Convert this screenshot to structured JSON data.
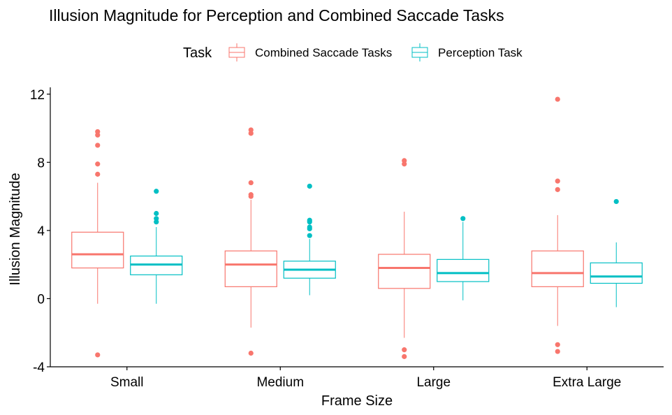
{
  "chart_data": {
    "type": "box",
    "title": "Illusion Magnitude for Perception and Combined Saccade Tasks",
    "xlabel": "Frame Size",
    "ylabel": "Illusion Magnitude",
    "ylim": [
      -4,
      12.4
    ],
    "yticks": [
      -4,
      0,
      4,
      8,
      12
    ],
    "yticklabels": [
      "-4",
      "0",
      "4",
      "8",
      "12"
    ],
    "grid": false,
    "legend": {
      "title": "Task",
      "position": "top"
    },
    "categories": [
      "Small",
      "Medium",
      "Large",
      "Extra Large"
    ],
    "series": [
      {
        "name": "Combined Saccade Tasks",
        "color": "#F8766D",
        "boxes": [
          {
            "category": "Small",
            "whisker_low": -0.3,
            "q1": 1.8,
            "median": 2.6,
            "q3": 3.9,
            "whisker_high": 6.8,
            "outliers": [
              -3.3,
              7.3,
              7.9,
              9.0,
              9.6,
              9.8
            ]
          },
          {
            "category": "Medium",
            "whisker_low": -1.7,
            "q1": 0.7,
            "median": 2.0,
            "q3": 2.8,
            "whisker_high": 5.8,
            "outliers": [
              -3.2,
              6.0,
              6.1,
              6.8,
              9.7,
              9.9
            ]
          },
          {
            "category": "Large",
            "whisker_low": -2.3,
            "q1": 0.6,
            "median": 1.8,
            "q3": 2.6,
            "whisker_high": 5.1,
            "outliers": [
              -3.0,
              -3.4,
              7.9,
              8.1
            ]
          },
          {
            "category": "Extra Large",
            "whisker_low": -1.6,
            "q1": 0.7,
            "median": 1.5,
            "q3": 2.8,
            "whisker_high": 4.9,
            "outliers": [
              -2.7,
              -3.1,
              6.4,
              6.9,
              11.7
            ]
          }
        ]
      },
      {
        "name": "Perception Task",
        "color": "#00BFC4",
        "boxes": [
          {
            "category": "Small",
            "whisker_low": -0.3,
            "q1": 1.4,
            "median": 2.0,
            "q3": 2.5,
            "whisker_high": 4.2,
            "outliers": [
              4.5,
              4.7,
              5.0,
              6.3
            ]
          },
          {
            "category": "Medium",
            "whisker_low": 0.2,
            "q1": 1.2,
            "median": 1.7,
            "q3": 2.2,
            "whisker_high": 3.5,
            "outliers": [
              3.7,
              4.1,
              4.2,
              4.5,
              4.6,
              6.6
            ]
          },
          {
            "category": "Large",
            "whisker_low": -0.1,
            "q1": 1.0,
            "median": 1.5,
            "q3": 2.3,
            "whisker_high": 4.5,
            "outliers": [
              4.7
            ]
          },
          {
            "category": "Extra Large",
            "whisker_low": -0.5,
            "q1": 0.9,
            "median": 1.3,
            "q3": 2.1,
            "whisker_high": 3.3,
            "outliers": [
              5.7
            ]
          }
        ]
      }
    ]
  }
}
